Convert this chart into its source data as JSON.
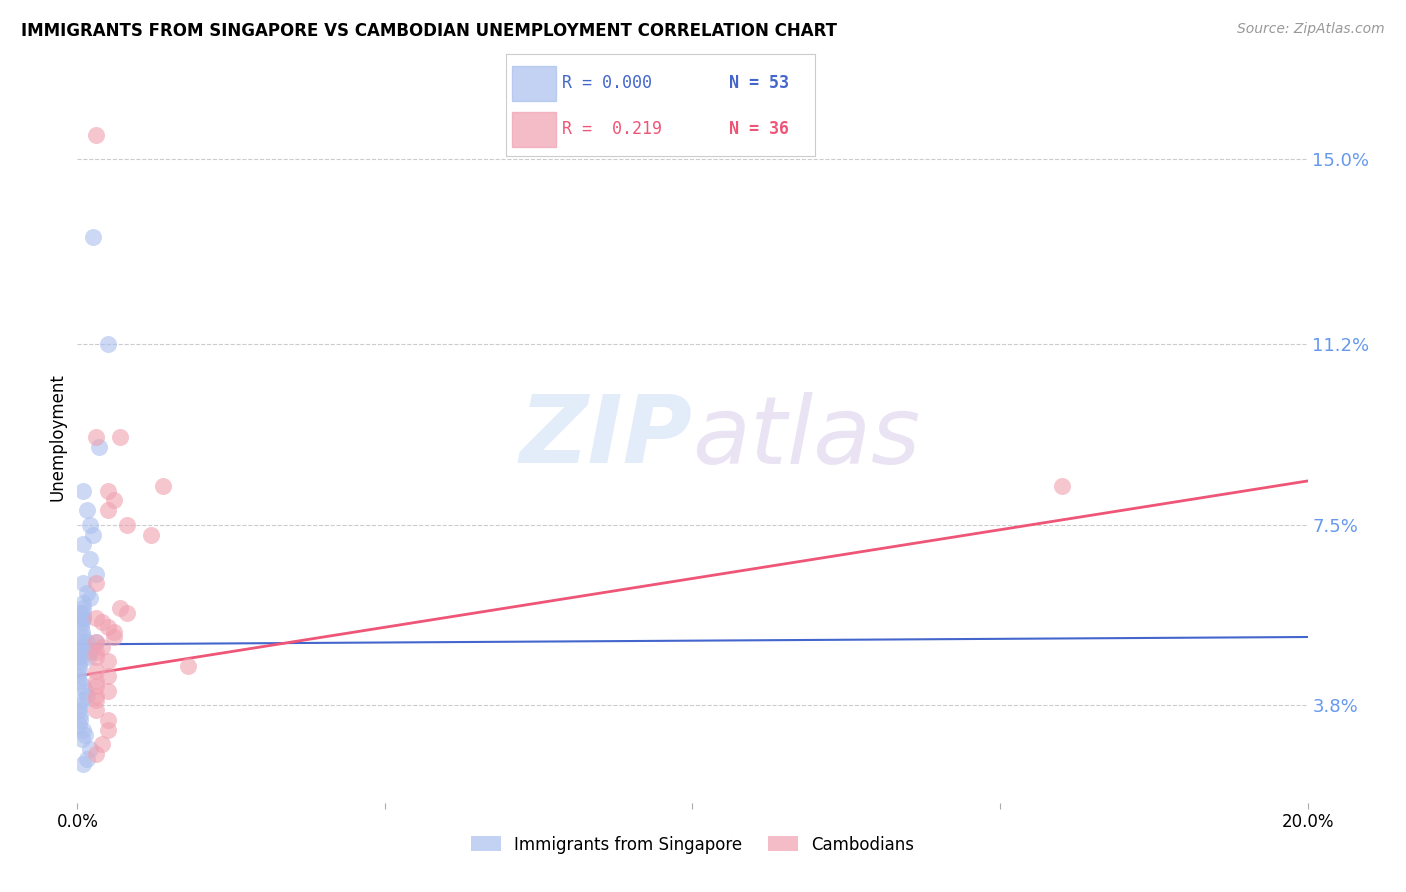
{
  "title": "IMMIGRANTS FROM SINGAPORE VS CAMBODIAN UNEMPLOYMENT CORRELATION CHART",
  "source": "Source: ZipAtlas.com",
  "ylabel": "Unemployment",
  "y_ticks": [
    0.038,
    0.075,
    0.112,
    0.15
  ],
  "y_tick_labels": [
    "3.8%",
    "7.5%",
    "11.2%",
    "15.0%"
  ],
  "legend_r1": "R = 0.000",
  "legend_n1": "N = 53",
  "legend_r2": "R =  0.219",
  "legend_n2": "N = 36",
  "blue_color": "#aabfee",
  "pink_color": "#f0a0b0",
  "blue_line_color": "#4466cc",
  "pink_line_color": "#ee5577",
  "watermark_zip": "ZIP",
  "watermark_atlas": "atlas",
  "background_color": "#ffffff",
  "grid_color": "#cccccc",
  "right_label_color": "#6699ee",
  "xlim": [
    0.0,
    0.2
  ],
  "ylim": [
    0.018,
    0.168
  ],
  "singapore_x": [
    0.0025,
    0.005,
    0.0035,
    0.001,
    0.0015,
    0.002,
    0.0025,
    0.001,
    0.002,
    0.003,
    0.001,
    0.0015,
    0.002,
    0.001,
    0.001,
    0.0005,
    0.001,
    0.001,
    0.001,
    0.0008,
    0.0006,
    0.0008,
    0.001,
    0.0015,
    0.001,
    0.001,
    0.0005,
    0.0003,
    0.0003,
    0.0002,
    0.0004,
    0.0003,
    0.0002,
    0.0001,
    0.0002,
    0.001,
    0.0012,
    0.0015,
    0.0008,
    0.0005,
    0.0003,
    0.0005,
    0.0004,
    0.0003,
    0.001,
    0.0012,
    0.0008,
    0.002,
    0.0015,
    0.001,
    0.002,
    0.0018,
    0.003
  ],
  "singapore_y": [
    0.134,
    0.112,
    0.091,
    0.082,
    0.078,
    0.075,
    0.073,
    0.071,
    0.068,
    0.065,
    0.063,
    0.061,
    0.06,
    0.059,
    0.058,
    0.057,
    0.057,
    0.056,
    0.056,
    0.055,
    0.054,
    0.053,
    0.052,
    0.051,
    0.051,
    0.05,
    0.05,
    0.049,
    0.048,
    0.048,
    0.047,
    0.046,
    0.045,
    0.044,
    0.043,
    0.042,
    0.041,
    0.04,
    0.039,
    0.038,
    0.037,
    0.036,
    0.035,
    0.034,
    0.033,
    0.032,
    0.031,
    0.029,
    0.027,
    0.026,
    0.049,
    0.048,
    0.051
  ],
  "cambodian_x": [
    0.003,
    0.003,
    0.005,
    0.006,
    0.007,
    0.005,
    0.008,
    0.012,
    0.003,
    0.014,
    0.007,
    0.008,
    0.003,
    0.004,
    0.005,
    0.006,
    0.006,
    0.003,
    0.004,
    0.003,
    0.003,
    0.005,
    0.16,
    0.018,
    0.003,
    0.005,
    0.003,
    0.003,
    0.005,
    0.003,
    0.003,
    0.003,
    0.005,
    0.005,
    0.004,
    0.003
  ],
  "cambodian_y": [
    0.155,
    0.093,
    0.082,
    0.08,
    0.093,
    0.078,
    0.075,
    0.073,
    0.063,
    0.083,
    0.058,
    0.057,
    0.056,
    0.055,
    0.054,
    0.053,
    0.052,
    0.051,
    0.05,
    0.049,
    0.048,
    0.047,
    0.083,
    0.046,
    0.045,
    0.044,
    0.043,
    0.042,
    0.041,
    0.04,
    0.039,
    0.037,
    0.035,
    0.033,
    0.03,
    0.028
  ],
  "blue_trend_x": [
    0.0,
    0.2
  ],
  "blue_trend_y": [
    0.0505,
    0.052
  ],
  "pink_trend_x": [
    0.0,
    0.2
  ],
  "pink_trend_y": [
    0.044,
    0.084
  ]
}
